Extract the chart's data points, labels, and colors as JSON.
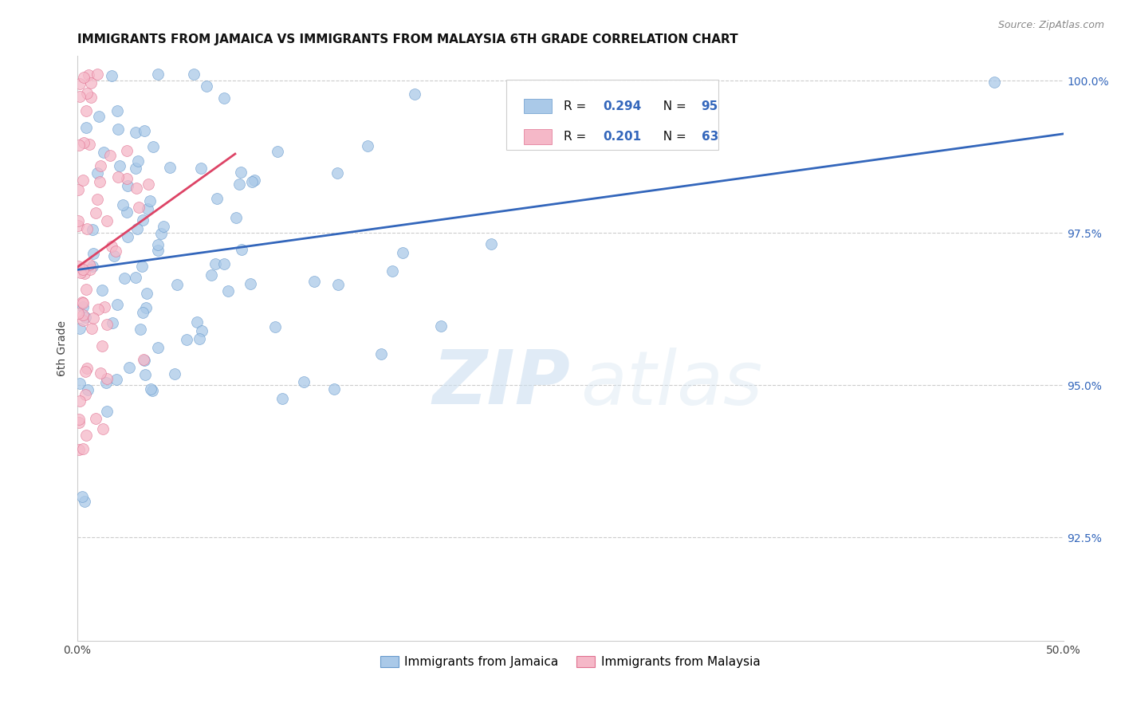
{
  "title": "IMMIGRANTS FROM JAMAICA VS IMMIGRANTS FROM MALAYSIA 6TH GRADE CORRELATION CHART",
  "source": "Source: ZipAtlas.com",
  "ylabel": "6th Grade",
  "xlim": [
    0.0,
    0.5
  ],
  "ylim": [
    0.908,
    1.004
  ],
  "ytick_labels": [
    "92.5%",
    "95.0%",
    "97.5%",
    "100.0%"
  ],
  "yticks": [
    0.925,
    0.95,
    0.975,
    1.0
  ],
  "blue_color": "#aac9e8",
  "pink_color": "#f5b8c8",
  "blue_edge_color": "#6699cc",
  "pink_edge_color": "#e07090",
  "blue_line_color": "#3366bb",
  "pink_line_color": "#dd4466",
  "title_fontsize": 11,
  "axis_label_fontsize": 10,
  "tick_fontsize": 10
}
